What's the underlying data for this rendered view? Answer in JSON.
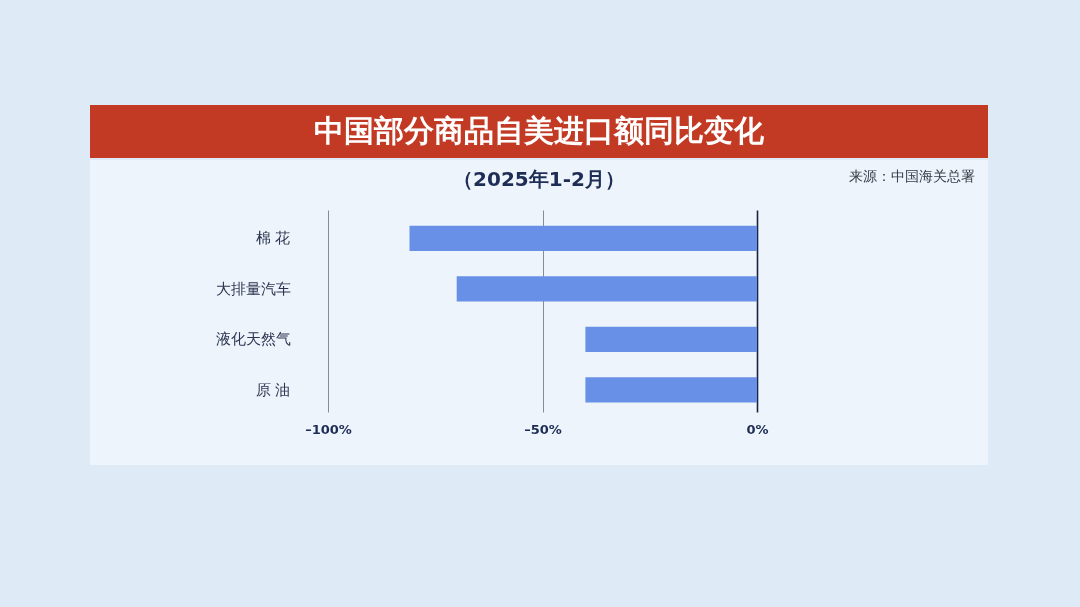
{
  "chart_data": {
    "type": "bar",
    "orientation": "horizontal",
    "title": "中国部分商品自美进口额同比变化",
    "subtitle": "（2025年1-2月）",
    "annotations": [
      "来源：中国海关总署"
    ],
    "categories": [
      "棉 花",
      "大排量汽车",
      "液化天然气",
      "原 油"
    ],
    "values": [
      -81,
      -70,
      -40,
      -40
    ],
    "color": "#6890e6",
    "xlim": [
      -100,
      0
    ],
    "xticks": [
      {
        "value": -100,
        "label": "–100%"
      },
      {
        "value": -50,
        "label": "–50%"
      },
      {
        "value": 0,
        "label": "0%"
      }
    ],
    "grid": "x"
  }
}
